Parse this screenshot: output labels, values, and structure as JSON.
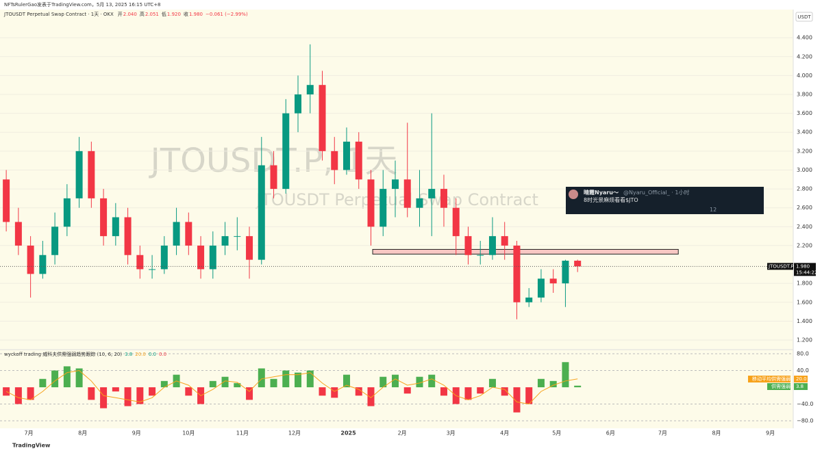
{
  "header": {
    "attribution": "NFTsRulerGao发表于TradingView.com，5月 13, 2025 16:15 UTC+8",
    "footer": "TradingView",
    "currency": "USDT"
  },
  "overlay": {
    "name": "晴霞Nyaru～",
    "handle": "@Nyaru_Official_ · 1小时",
    "text": "8时光景麻烦看看$JTO",
    "views": "12"
  },
  "chart_data": [
    {
      "type": "candlestick",
      "title": "JTOUSDT Perpetual Swap Contract · 1天 · OKX",
      "ohlc_keys": [
        "开",
        "高",
        "低",
        "收"
      ],
      "ohlc_values": [
        "2.040",
        "2.051",
        "1.920",
        "1.980"
      ],
      "change": "−0.061 (−2.99%)",
      "watermark": "JTOUSDT.P, 1天",
      "watermark_sub": "JTOUSDT Perpetual Swap Contract",
      "symbol_tag": "JTOUSDT.P",
      "price_tag": "1.980",
      "countdown": "15:44:22",
      "up_color": "#089981",
      "down_color": "#f23645",
      "zone": {
        "from": 2.11,
        "to": 2.16,
        "x": [
          198,
          374
        ],
        "color": "#f8c8c4"
      },
      "x": [
        -13,
        -6,
        1,
        8,
        15,
        22,
        29,
        36,
        43,
        50,
        57,
        64,
        71,
        78,
        85,
        92,
        99,
        106,
        113,
        120,
        127,
        134,
        141,
        148,
        155,
        162,
        169,
        176,
        183,
        190,
        197,
        204,
        211,
        218,
        225,
        232,
        239,
        246,
        253,
        260,
        267,
        274,
        281,
        288,
        295,
        302,
        309,
        316
      ],
      "open": [
        2.9,
        2.45,
        2.2,
        1.9,
        2.1,
        2.4,
        2.7,
        3.2,
        2.7,
        2.3,
        2.5,
        2.1,
        1.95,
        1.95,
        2.2,
        2.45,
        2.2,
        1.95,
        2.2,
        2.3,
        2.3,
        2.05,
        3.05,
        2.8,
        3.6,
        3.8,
        3.9,
        3.2,
        3.0,
        3.3,
        2.9,
        2.4,
        2.8,
        2.9,
        2.6,
        2.7,
        2.8,
        2.6,
        2.3,
        2.1,
        2.1,
        2.3,
        2.2,
        1.6,
        1.65,
        1.85,
        1.8,
        2.04
      ],
      "high": [
        3.0,
        2.6,
        2.3,
        2.25,
        2.55,
        2.85,
        3.35,
        3.3,
        2.8,
        2.65,
        2.6,
        2.2,
        2.1,
        2.3,
        2.6,
        2.55,
        2.3,
        2.35,
        2.45,
        2.5,
        2.4,
        3.35,
        3.2,
        3.75,
        4.0,
        4.33,
        4.05,
        3.35,
        3.45,
        3.4,
        3.0,
        3.0,
        3.1,
        3.5,
        3.0,
        3.6,
        2.95,
        2.7,
        2.4,
        2.25,
        2.5,
        2.45,
        2.25,
        1.75,
        1.95,
        1.95,
        2.05,
        2.051
      ],
      "low": [
        2.35,
        2.1,
        1.65,
        1.85,
        2.0,
        2.3,
        2.6,
        2.6,
        2.2,
        2.2,
        2.0,
        1.85,
        1.85,
        1.9,
        2.1,
        2.1,
        1.85,
        1.85,
        2.1,
        2.15,
        1.85,
        2.0,
        2.7,
        2.75,
        3.4,
        3.6,
        3.1,
        2.85,
        2.95,
        2.8,
        2.2,
        2.3,
        2.5,
        2.5,
        2.4,
        2.3,
        2.4,
        2.1,
        2.0,
        2.0,
        2.05,
        2.05,
        1.42,
        1.55,
        1.6,
        1.7,
        1.55,
        1.92
      ],
      "close": [
        2.45,
        2.2,
        1.9,
        2.1,
        2.4,
        2.7,
        3.2,
        2.7,
        2.3,
        2.5,
        2.1,
        1.95,
        1.95,
        2.2,
        2.45,
        2.2,
        1.95,
        2.2,
        2.3,
        2.3,
        2.05,
        3.05,
        2.8,
        3.6,
        3.8,
        3.9,
        3.2,
        3.0,
        3.3,
        2.9,
        2.4,
        2.8,
        2.9,
        2.6,
        2.7,
        2.8,
        2.6,
        2.3,
        2.1,
        2.1,
        2.3,
        2.2,
        1.6,
        1.65,
        1.85,
        1.8,
        2.04,
        1.98
      ],
      "xlim": [
        -16.6,
        439
      ],
      "ylim": [
        1.106,
        4.698
      ],
      "yticks": [
        {
          "value": 1.2,
          "label": "1.200"
        },
        {
          "value": 1.4,
          "label": "1.400"
        },
        {
          "value": 1.6,
          "label": "1.600"
        },
        {
          "value": 1.8,
          "label": "1.800"
        },
        {
          "value": 2.2,
          "label": "2.200"
        },
        {
          "value": 2.4,
          "label": "2.400"
        },
        {
          "value": 2.6,
          "label": "2.600"
        },
        {
          "value": 2.8,
          "label": "2.800"
        },
        {
          "value": 3.0,
          "label": "3.000"
        },
        {
          "value": 3.2,
          "label": "3.200"
        },
        {
          "value": 3.4,
          "label": "3.400"
        },
        {
          "value": 3.6,
          "label": "3.600"
        },
        {
          "value": 3.8,
          "label": "3.800"
        },
        {
          "value": 4.0,
          "label": "4.000"
        },
        {
          "value": 4.2,
          "label": "4.200"
        },
        {
          "value": 4.4,
          "label": "4.400"
        }
      ]
    },
    {
      "type": "indicator",
      "title": "wyckoff trading 威科夫供需强弱趋势跟踪 (10, 6, 20)",
      "header_values": [
        "3.8",
        "20.0",
        "0.0",
        "0.0"
      ],
      "header_colors": [
        "#089981",
        "#f7a21b",
        "#089981",
        "#f23645"
      ],
      "x": [
        -13,
        -6,
        1,
        8,
        15,
        22,
        29,
        36,
        43,
        50,
        57,
        64,
        71,
        78,
        85,
        92,
        99,
        106,
        113,
        120,
        127,
        134,
        141,
        148,
        155,
        162,
        169,
        176,
        183,
        190,
        197,
        204,
        211,
        218,
        225,
        232,
        239,
        246,
        253,
        260,
        267,
        274,
        281,
        288,
        295,
        302,
        309,
        316
      ],
      "series": [
        {
          "name": "供需强弱",
          "color": "#4caf50",
          "neg_color": "#f23645",
          "values": [
            -20,
            -40,
            -30,
            20,
            40,
            50,
            45,
            -30,
            -50,
            -10,
            -45,
            -40,
            -20,
            15,
            30,
            -20,
            -40,
            15,
            25,
            10,
            -30,
            45,
            20,
            40,
            35,
            40,
            -20,
            -25,
            30,
            -20,
            -45,
            25,
            30,
            -15,
            25,
            30,
            -20,
            -40,
            -30,
            -15,
            20,
            -20,
            -60,
            -40,
            20,
            15,
            60,
            3.8
          ],
          "tag": "3.8"
        },
        {
          "name": "移动平均供需强弱",
          "color": "#f7a21b",
          "values": [
            -10,
            -25,
            -30,
            -10,
            15,
            35,
            40,
            15,
            -20,
            -25,
            -30,
            -35,
            -25,
            0,
            15,
            5,
            -20,
            -5,
            15,
            12,
            -10,
            20,
            25,
            30,
            30,
            35,
            10,
            -10,
            5,
            -5,
            -25,
            0,
            20,
            5,
            10,
            20,
            5,
            -20,
            -30,
            -20,
            0,
            -5,
            -35,
            -40,
            -10,
            5,
            15,
            20
          ],
          "tag": "20.0"
        }
      ],
      "xlim": [
        -16.6,
        439
      ],
      "ylim": [
        -96.3,
        88.2
      ],
      "yticks": [
        {
          "value": 80,
          "label": "80.0"
        },
        {
          "value": 40,
          "label": "40.0"
        },
        {
          "value": -40,
          "label": "−40.0"
        },
        {
          "value": -80,
          "label": "−80.0"
        }
      ],
      "xticks": [
        {
          "value": 0,
          "label": "7月"
        },
        {
          "value": 31,
          "label": "8月"
        },
        {
          "value": 62,
          "label": "9月"
        },
        {
          "value": 92,
          "label": "10月"
        },
        {
          "value": 123,
          "label": "11月"
        },
        {
          "value": 153,
          "label": "12月"
        },
        {
          "value": 184,
          "label": "2025"
        },
        {
          "value": 215,
          "label": "2月"
        },
        {
          "value": 243,
          "label": "3月"
        },
        {
          "value": 274,
          "label": "4月"
        },
        {
          "value": 304,
          "label": "5月"
        },
        {
          "value": 335,
          "label": "6月"
        },
        {
          "value": 365,
          "label": "7月"
        },
        {
          "value": 396,
          "label": "8月"
        },
        {
          "value": 427,
          "label": "9月"
        }
      ]
    }
  ]
}
